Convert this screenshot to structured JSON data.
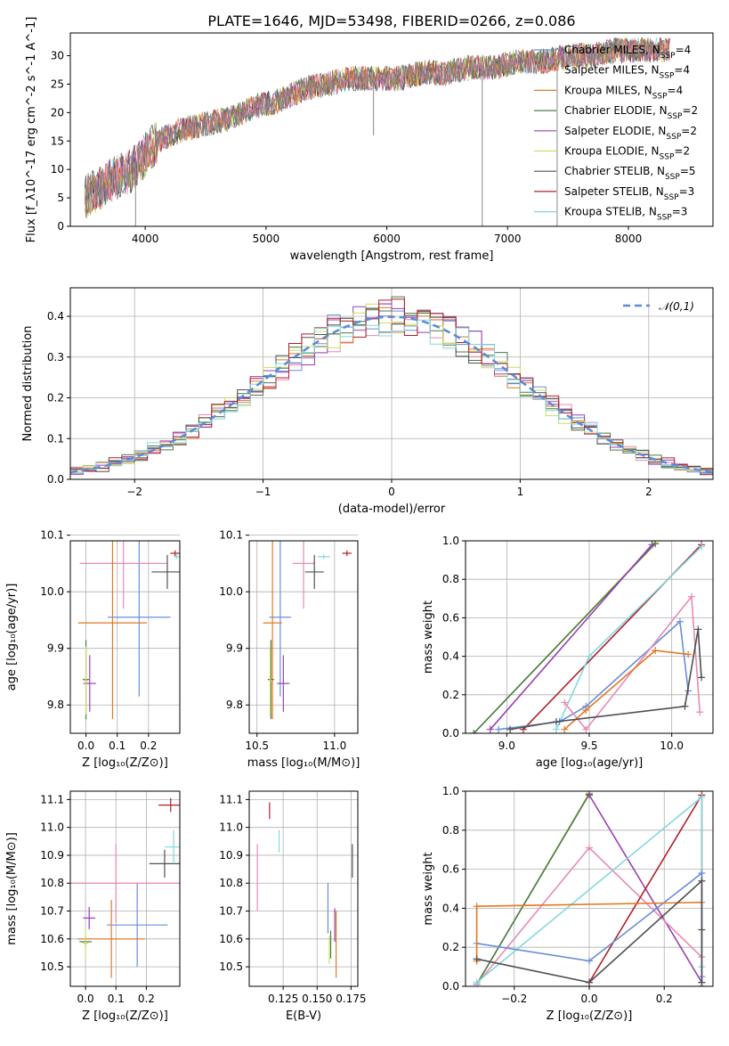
{
  "figure_title": "PLATE=1646, MJD=53498, FIBERID=0266, z=0.086",
  "colors": {
    "c_miles": "#6a8fd8",
    "s_miles": "#e88ab6",
    "k_miles": "#e07a25",
    "c_elodie": "#4a7a4a",
    "s_elodie": "#9a3fb0",
    "k_elodie": "#c8e060",
    "c_stelib": "#505050",
    "s_stelib": "#b0202a",
    "k_stelib": "#82d8dc"
  },
  "legend_entries": [
    {
      "key": "c_miles",
      "text": "Chabrier MILES, N",
      "sub": "SSP",
      "suffix": "=4"
    },
    {
      "key": "s_miles",
      "text": "Salpeter MILES, N",
      "sub": "SSP",
      "suffix": "=4"
    },
    {
      "key": "k_miles",
      "text": "Kroupa MILES, N",
      "sub": "SSP",
      "suffix": "=4"
    },
    {
      "key": "c_elodie",
      "text": "Chabrier ELODIE, N",
      "sub": "SSP",
      "suffix": "=2"
    },
    {
      "key": "s_elodie",
      "text": "Salpeter ELODIE, N",
      "sub": "SSP",
      "suffix": "=2"
    },
    {
      "key": "k_elodie",
      "text": "Kroupa ELODIE, N",
      "sub": "SSP",
      "suffix": "=2"
    },
    {
      "key": "c_stelib",
      "text": "Chabrier STELIB, N",
      "sub": "SSP",
      "suffix": "=5"
    },
    {
      "key": "s_stelib",
      "text": "Salpeter STELIB, N",
      "sub": "SSP",
      "suffix": "=3"
    },
    {
      "key": "k_stelib",
      "text": "Kroupa STELIB, N",
      "sub": "SSP",
      "suffix": "=3"
    }
  ],
  "chart_data": [
    {
      "id": "spectrum",
      "type": "line",
      "xlabel": "wavelength [Angstrom, rest frame]",
      "ylabel": "Flux [f_λ10^-17 erg cm^-2 s^-1 A^-1]",
      "xlim": [
        3380,
        8700
      ],
      "ylim": [
        0,
        34
      ],
      "xticks": [
        4000,
        5000,
        6000,
        7000,
        8000
      ],
      "yticks": [
        0,
        5,
        10,
        15,
        20,
        25,
        30
      ],
      "envelope": {
        "x": [
          3500,
          3700,
          3900,
          4100,
          4300,
          4500,
          4700,
          4900,
          5100,
          5300,
          5500,
          5700,
          5900,
          6100,
          6300,
          6500,
          6700,
          6900,
          7100,
          7300,
          7500,
          7700,
          7900,
          8100,
          8300
        ],
        "y": [
          5,
          8,
          10,
          15,
          17,
          18,
          19,
          21,
          22,
          24,
          25,
          26,
          26,
          26,
          27,
          27,
          28,
          28,
          29,
          29,
          30,
          30,
          31,
          31,
          31
        ]
      },
      "spikes": [
        {
          "x": 3920,
          "y": 0
        },
        {
          "x": 5890,
          "y": 16
        },
        {
          "x": 6790,
          "y": 0
        },
        {
          "x": 7410,
          "y": 0
        }
      ]
    },
    {
      "id": "residual_hist",
      "type": "histogram",
      "xlabel": "(data-model)/error",
      "ylabel": "Normed distribution",
      "xlim": [
        -2.5,
        2.5
      ],
      "ylim": [
        0,
        0.47
      ],
      "xticks": [
        -2,
        -1,
        0,
        1,
        2
      ],
      "yticks": [
        0,
        0.1,
        0.2,
        0.3,
        0.4
      ],
      "reference": {
        "name": "𝒩(0,1)",
        "mu": 0,
        "sigma": 1
      }
    },
    {
      "id": "age_vs_Z",
      "type": "scatter_errorbars",
      "xlabel": "Z [log₁₀(Z/Z⊙)]",
      "ylabel": "age  [log₁₀(age/yr)]",
      "xlim": [
        -0.05,
        0.3
      ],
      "ylim": [
        9.75,
        10.09
      ],
      "xticks": [
        0,
        0.1,
        0.2
      ],
      "yticks": [
        9.8,
        9.9,
        10.0,
        10.1
      ],
      "points": [
        {
          "key": "c_miles",
          "x": 0.17,
          "y": 9.955,
          "xerr": 0.1,
          "yerr": 0.14
        },
        {
          "key": "s_miles",
          "x": 0.12,
          "y": 10.05,
          "xerr": 0.14,
          "yerr": 0.08
        },
        {
          "key": "k_miles",
          "x": 0.085,
          "y": 9.945,
          "xerr": 0.11,
          "yerr": 0.17
        },
        {
          "key": "c_elodie",
          "x": 0.0,
          "y": 9.845,
          "xerr": 0.01,
          "yerr": 0.07
        },
        {
          "key": "s_elodie",
          "x": 0.012,
          "y": 9.838,
          "xerr": 0.02,
          "yerr": 0.05
        },
        {
          "key": "k_elodie",
          "x": 0.0,
          "y": 9.843,
          "xerr": 0.008,
          "yerr": 0.06
        },
        {
          "key": "c_stelib",
          "x": 0.26,
          "y": 10.035,
          "xerr": 0.05,
          "yerr": 0.03
        },
        {
          "key": "s_stelib",
          "x": 0.285,
          "y": 10.068,
          "xerr": 0.015,
          "yerr": 0.005
        },
        {
          "key": "k_stelib",
          "x": 0.29,
          "y": 10.062,
          "xerr": 0.01,
          "yerr": 0.004
        }
      ]
    },
    {
      "id": "age_vs_mass",
      "type": "scatter_errorbars",
      "xlabel": "mass [log₁₀(M/M⊙)]",
      "ylabel": "",
      "xlim": [
        10.45,
        11.15
      ],
      "ylim": [
        9.75,
        10.09
      ],
      "xticks": [
        10.5,
        11.0
      ],
      "yticks": [
        9.8,
        9.9,
        10.0,
        10.1
      ],
      "points": [
        {
          "key": "c_miles",
          "x": 10.65,
          "y": 9.955,
          "xerr": 0.07,
          "yerr": 0.14
        },
        {
          "key": "s_miles",
          "x": 10.8,
          "y": 10.05,
          "xerr": 0.07,
          "yerr": 0.08
        },
        {
          "key": "k_miles",
          "x": 10.6,
          "y": 9.945,
          "xerr": 0.06,
          "yerr": 0.17
        },
        {
          "key": "c_elodie",
          "x": 10.59,
          "y": 9.845,
          "xerr": 0.02,
          "yerr": 0.07
        },
        {
          "key": "s_elodie",
          "x": 10.67,
          "y": 9.838,
          "xerr": 0.04,
          "yerr": 0.05
        },
        {
          "key": "k_elodie",
          "x": 10.585,
          "y": 9.843,
          "xerr": 0.01,
          "yerr": 0.06
        },
        {
          "key": "c_stelib",
          "x": 10.87,
          "y": 10.035,
          "xerr": 0.06,
          "yerr": 0.03
        },
        {
          "key": "s_stelib",
          "x": 11.08,
          "y": 10.068,
          "xerr": 0.03,
          "yerr": 0.005
        },
        {
          "key": "k_stelib",
          "x": 10.93,
          "y": 10.062,
          "xerr": 0.04,
          "yerr": 0.004
        }
      ]
    },
    {
      "id": "weight_vs_age",
      "type": "line",
      "xlabel": "age  [log₁₀(age/yr)]",
      "ylabel": "mass weight",
      "xlim": [
        8.75,
        10.25
      ],
      "ylim": [
        0,
        1
      ],
      "xticks": [
        9.0,
        9.5,
        10.0
      ],
      "yticks": [
        0,
        0.2,
        0.4,
        0.6,
        0.8,
        1.0
      ],
      "series": [
        {
          "key": "k_elodie",
          "x": [
            8.8,
            9.9
          ],
          "y": [
            0.0,
            0.99
          ]
        },
        {
          "key": "c_elodie",
          "x": [
            8.8,
            9.9
          ],
          "y": [
            0.0,
            0.985
          ]
        },
        {
          "key": "s_elodie",
          "x": [
            8.9,
            9.88
          ],
          "y": [
            0.02,
            0.98
          ]
        },
        {
          "key": "s_stelib",
          "x": [
            9.1,
            10.18
          ],
          "y": [
            0.02,
            0.98
          ]
        },
        {
          "key": "k_stelib",
          "x": [
            9.3,
            9.5,
            10.18
          ],
          "y": [
            0.02,
            0.4,
            0.97
          ]
        },
        {
          "key": "c_miles",
          "x": [
            8.95,
            9.32,
            9.48,
            10.05,
            10.1
          ],
          "y": [
            0.02,
            0.06,
            0.14,
            0.58,
            0.22
          ]
        },
        {
          "key": "s_miles",
          "x": [
            9.35,
            9.48,
            10.12,
            10.17
          ],
          "y": [
            0.16,
            0.02,
            0.71,
            0.11
          ]
        },
        {
          "key": "k_miles",
          "x": [
            9.35,
            9.48,
            9.9,
            10.1
          ],
          "y": [
            0.02,
            0.12,
            0.43,
            0.41
          ]
        },
        {
          "key": "c_stelib",
          "x": [
            9.02,
            9.3,
            10.08,
            10.16,
            10.18
          ],
          "y": [
            0.02,
            0.06,
            0.14,
            0.54,
            0.29
          ]
        }
      ]
    },
    {
      "id": "mass_vs_Z",
      "type": "scatter_errorbars",
      "xlabel": "Z [log₁₀(Z/Z⊙)]",
      "ylabel": "mass [log₁₀(M/M⊙)]",
      "xlim": [
        -0.05,
        0.31
      ],
      "ylim": [
        10.43,
        11.13
      ],
      "xticks": [
        0,
        0.1,
        0.2
      ],
      "yticks": [
        10.5,
        10.6,
        10.7,
        10.8,
        10.9,
        11.0,
        11.1
      ],
      "points": [
        {
          "key": "c_miles",
          "x": 0.17,
          "y": 10.65,
          "xerr": 0.1,
          "yerr": 0.15
        },
        {
          "key": "s_miles",
          "x": 0.1,
          "y": 10.8,
          "xerr": 0.22,
          "yerr": 0.14
        },
        {
          "key": "k_miles",
          "x": 0.085,
          "y": 10.6,
          "xerr": 0.11,
          "yerr": 0.14
        },
        {
          "key": "c_elodie",
          "x": 0.0,
          "y": 10.59,
          "xerr": 0.02,
          "yerr": 0.02
        },
        {
          "key": "s_elodie",
          "x": 0.012,
          "y": 10.675,
          "xerr": 0.02,
          "yerr": 0.04
        },
        {
          "key": "k_elodie",
          "x": 0.0,
          "y": 10.585,
          "xerr": 0.01,
          "yerr": 0.05
        },
        {
          "key": "c_stelib",
          "x": 0.26,
          "y": 10.87,
          "xerr": 0.05,
          "yerr": 0.05
        },
        {
          "key": "s_stelib",
          "x": 0.28,
          "y": 11.08,
          "xerr": 0.04,
          "yerr": 0.025
        },
        {
          "key": "k_stelib",
          "x": 0.29,
          "y": 10.93,
          "xerr": 0.03,
          "yerr": 0.06
        }
      ]
    },
    {
      "id": "mass_vs_ebv",
      "type": "scatter_errorbars",
      "xlabel": "E(B-V)",
      "ylabel": "",
      "xlim": [
        0.1,
        0.18
      ],
      "ylim": [
        10.43,
        11.13
      ],
      "xticks": [
        0.125,
        0.15,
        0.175
      ],
      "yticks": [
        10.5,
        10.6,
        10.7,
        10.8,
        10.9,
        11.0,
        11.1
      ],
      "points": [
        {
          "key": "c_miles",
          "x": 0.158,
          "y": 10.71,
          "xerr": 0,
          "yerr": 0.09
        },
        {
          "key": "s_miles",
          "x": 0.106,
          "y": 10.82,
          "xerr": 0,
          "yerr": 0.12
        },
        {
          "key": "k_miles",
          "x": 0.164,
          "y": 10.58,
          "xerr": 0,
          "yerr": 0.12
        },
        {
          "key": "c_elodie",
          "x": 0.16,
          "y": 10.58,
          "xerr": 0,
          "yerr": 0.05
        },
        {
          "key": "s_elodie",
          "x": 0.163,
          "y": 10.65,
          "xerr": 0,
          "yerr": 0.06
        },
        {
          "key": "k_elodie",
          "x": 0.159,
          "y": 10.56,
          "xerr": 0,
          "yerr": 0.05
        },
        {
          "key": "c_stelib",
          "x": 0.176,
          "y": 10.88,
          "xerr": 0,
          "yerr": 0.06
        },
        {
          "key": "s_stelib",
          "x": 0.115,
          "y": 11.06,
          "xerr": 0,
          "yerr": 0.03
        },
        {
          "key": "k_stelib",
          "x": 0.122,
          "y": 10.95,
          "xerr": 0,
          "yerr": 0.04
        }
      ]
    },
    {
      "id": "weight_vs_Z",
      "type": "line",
      "xlabel": "Z [log₁₀(Z/Z⊙)]",
      "ylabel": "mass weight",
      "xlim": [
        -0.33,
        0.33
      ],
      "ylim": [
        0,
        1
      ],
      "xticks": [
        -0.2,
        0.0,
        0.2
      ],
      "yticks": [
        0,
        0.2,
        0.4,
        0.6,
        0.8,
        1.0
      ],
      "series": [
        {
          "key": "k_elodie",
          "x": [
            -0.3,
            0.0
          ],
          "y": [
            0.01,
            0.99
          ]
        },
        {
          "key": "c_elodie",
          "x": [
            -0.3,
            0.0
          ],
          "y": [
            0.01,
            0.985
          ]
        },
        {
          "key": "s_elodie",
          "x": [
            0.0,
            0.3
          ],
          "y": [
            0.98,
            0.02
          ]
        },
        {
          "key": "s_miles",
          "x": [
            -0.3,
            0.0,
            0.3
          ],
          "y": [
            0.01,
            0.71,
            0.15
          ]
        },
        {
          "key": "s_stelib",
          "x": [
            0.0,
            0.3,
            0.3
          ],
          "y": [
            0.02,
            0.98,
            0.0
          ]
        },
        {
          "key": "k_stelib",
          "x": [
            -0.3,
            0.3,
            0.3,
            0.3
          ],
          "y": [
            0.02,
            0.97,
            0.1,
            0.0
          ]
        },
        {
          "key": "c_miles",
          "x": [
            -0.3,
            0.0,
            0.3,
            0.3
          ],
          "y": [
            0.22,
            0.13,
            0.58,
            0.05
          ]
        },
        {
          "key": "k_miles",
          "x": [
            -0.3,
            -0.3,
            0.3
          ],
          "y": [
            0.13,
            0.41,
            0.43
          ]
        },
        {
          "key": "c_stelib",
          "x": [
            -0.3,
            0.0,
            0.3,
            0.3,
            0.3
          ],
          "y": [
            0.14,
            0.02,
            0.54,
            0.29,
            0.02
          ]
        }
      ]
    }
  ]
}
